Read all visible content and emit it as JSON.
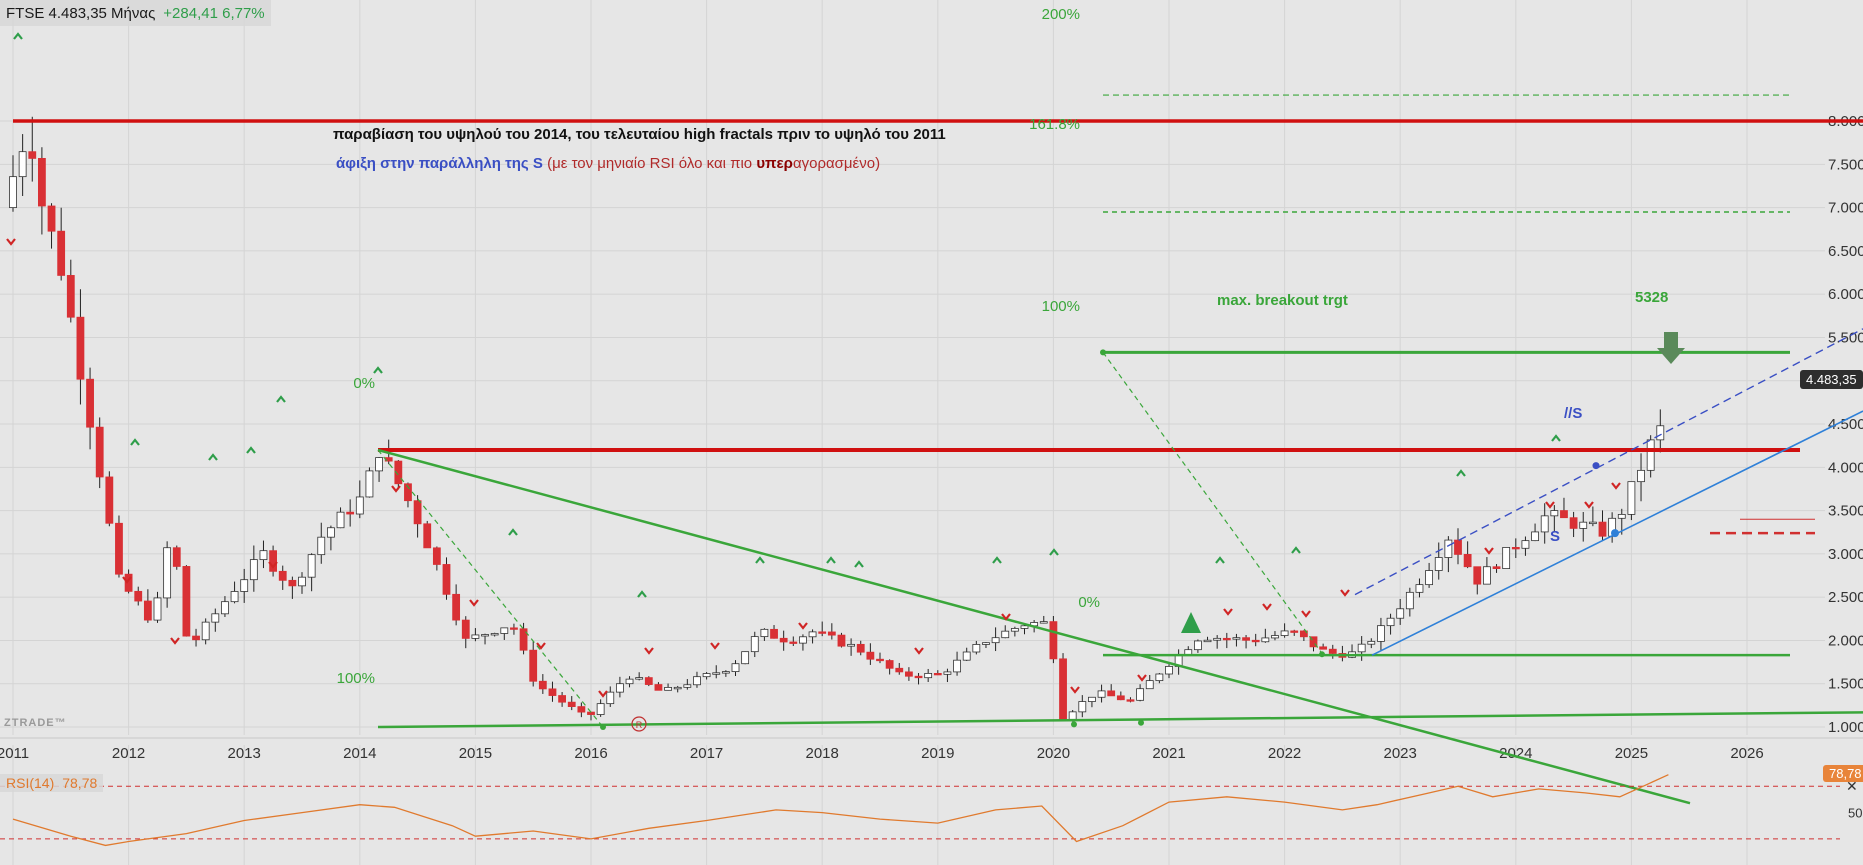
{
  "header": {
    "symbol_price": "FTSE 4.483,35 Μήνας",
    "change": "+284,41 6,77%"
  },
  "annotations": {
    "line1": "παραβίαση του υψηλού του 2014, του τελευταίου high fractals πριν το υψηλό του 2011",
    "line2_a": "άφιξη στην παράλληλη της S",
    "line2_b": " (με τον μηνιαίο RSI όλο και πιο ",
    "line2_c": "υπερ",
    "line2_d": "αγορασμένο)",
    "max_breakout": "max. breakout trgt",
    "target_value": "5328",
    "s_label": "S",
    "parallel_label": "//S"
  },
  "watermark": "ZTRADE™",
  "current_price_label": "4.483,35",
  "rsi": {
    "label": "RSI(14)",
    "value": "78,78",
    "box": "78,78",
    "mid_tick": "50"
  },
  "close_icon": "close-icon",
  "colors": {
    "bull": "#ffffff",
    "bear": "#d93035",
    "resistance": "#d01010",
    "green": "#3aa63a",
    "blue": "#2f80d8",
    "rsi": "#e07a2e"
  },
  "chart_data": {
    "type": "candlestick",
    "timeframe": "monthly",
    "x_ticks": [
      "2011",
      "2012",
      "2013",
      "2014",
      "2015",
      "2016",
      "2017",
      "2018",
      "2019",
      "2020",
      "2021",
      "2022",
      "2023",
      "2024",
      "2025",
      "2026"
    ],
    "y_ticks": [
      "1.000",
      "1.500",
      "2.000",
      "2.500",
      "3.000",
      "3.500",
      "4.000",
      "4.500",
      "5.000",
      "5.500",
      "6.000",
      "6.500",
      "7.000",
      "7.500",
      "8.000"
    ],
    "ylim": [
      500,
      8500
    ],
    "anchors": [
      {
        "t": 2011.0,
        "v": 7000
      },
      {
        "t": 2011.15,
        "v": 7650
      },
      {
        "t": 2011.22,
        "v": 8050
      },
      {
        "t": 2011.3,
        "v": 7200
      },
      {
        "t": 2011.5,
        "v": 6300
      },
      {
        "t": 2011.8,
        "v": 4200
      },
      {
        "t": 2012.0,
        "v": 2700
      },
      {
        "t": 2012.3,
        "v": 2200
      },
      {
        "t": 2012.45,
        "v": 3300
      },
      {
        "t": 2012.6,
        "v": 1900
      },
      {
        "t": 2013.0,
        "v": 2600
      },
      {
        "t": 2013.25,
        "v": 3000
      },
      {
        "t": 2013.5,
        "v": 2600
      },
      {
        "t": 2013.75,
        "v": 3200
      },
      {
        "t": 2014.1,
        "v": 3650
      },
      {
        "t": 2014.25,
        "v": 4200
      },
      {
        "t": 2014.55,
        "v": 3500
      },
      {
        "t": 2014.8,
        "v": 2700
      },
      {
        "t": 2015.0,
        "v": 2000
      },
      {
        "t": 2015.4,
        "v": 2200
      },
      {
        "t": 2015.6,
        "v": 1500
      },
      {
        "t": 2016.05,
        "v": 1100
      },
      {
        "t": 2016.4,
        "v": 1600
      },
      {
        "t": 2016.7,
        "v": 1400
      },
      {
        "t": 2017.3,
        "v": 1700
      },
      {
        "t": 2017.55,
        "v": 2100
      },
      {
        "t": 2017.8,
        "v": 2000
      },
      {
        "t": 2018.0,
        "v": 2100
      },
      {
        "t": 2018.4,
        "v": 1900
      },
      {
        "t": 2018.75,
        "v": 1600
      },
      {
        "t": 2019.1,
        "v": 1600
      },
      {
        "t": 2019.5,
        "v": 2000
      },
      {
        "t": 2019.85,
        "v": 2200
      },
      {
        "t": 2020.05,
        "v": 2200
      },
      {
        "t": 2020.15,
        "v": 1100
      },
      {
        "t": 2020.45,
        "v": 1400
      },
      {
        "t": 2020.75,
        "v": 1300
      },
      {
        "t": 2021.05,
        "v": 1700
      },
      {
        "t": 2021.35,
        "v": 2050
      },
      {
        "t": 2021.8,
        "v": 2000
      },
      {
        "t": 2022.15,
        "v": 2100
      },
      {
        "t": 2022.45,
        "v": 1850
      },
      {
        "t": 2022.7,
        "v": 1850
      },
      {
        "t": 2022.9,
        "v": 2100
      },
      {
        "t": 2023.2,
        "v": 2600
      },
      {
        "t": 2023.5,
        "v": 3200
      },
      {
        "t": 2023.75,
        "v": 2700
      },
      {
        "t": 2024.0,
        "v": 3000
      },
      {
        "t": 2024.35,
        "v": 3450
      },
      {
        "t": 2024.6,
        "v": 3350
      },
      {
        "t": 2024.85,
        "v": 3250
      },
      {
        "t": 2025.0,
        "v": 3500
      },
      {
        "t": 2025.15,
        "v": 3950
      },
      {
        "t": 2025.32,
        "v": 4480
      }
    ],
    "horizontal_levels": [
      {
        "label": "resistance 2011 high",
        "y": 8000,
        "color": "red"
      },
      {
        "label": "2014 high",
        "y": 4200,
        "color": "red"
      },
      {
        "label": "max. breakout trgt",
        "y": 5328,
        "color": "green"
      },
      {
        "label": "200%",
        "y": 8300,
        "color": "green",
        "dashed": true
      },
      {
        "label": "161.8%",
        "y": 6950,
        "color": "green",
        "dashed": true
      }
    ],
    "fib_labels": [
      "200%",
      "161.8%",
      "100%",
      "0%",
      "0%",
      "100%"
    ],
    "rsi_series": {
      "name": "RSI(14)",
      "ylim": [
        20,
        90
      ],
      "levels": [
        70,
        30
      ],
      "points": [
        {
          "t": 2011.0,
          "v": 45
        },
        {
          "t": 2011.5,
          "v": 32
        },
        {
          "t": 2011.8,
          "v": 25
        },
        {
          "t": 2012.0,
          "v": 28
        },
        {
          "t": 2012.5,
          "v": 34
        },
        {
          "t": 2013.0,
          "v": 44
        },
        {
          "t": 2013.5,
          "v": 50
        },
        {
          "t": 2014.0,
          "v": 56
        },
        {
          "t": 2014.3,
          "v": 54
        },
        {
          "t": 2014.8,
          "v": 40
        },
        {
          "t": 2015.0,
          "v": 32
        },
        {
          "t": 2015.5,
          "v": 36
        },
        {
          "t": 2016.0,
          "v": 30
        },
        {
          "t": 2016.5,
          "v": 38
        },
        {
          "t": 2017.0,
          "v": 44
        },
        {
          "t": 2017.6,
          "v": 52
        },
        {
          "t": 2018.0,
          "v": 50
        },
        {
          "t": 2018.5,
          "v": 45
        },
        {
          "t": 2019.0,
          "v": 42
        },
        {
          "t": 2019.5,
          "v": 52
        },
        {
          "t": 2019.9,
          "v": 55
        },
        {
          "t": 2020.2,
          "v": 28
        },
        {
          "t": 2020.6,
          "v": 40
        },
        {
          "t": 2021.0,
          "v": 58
        },
        {
          "t": 2021.5,
          "v": 62
        },
        {
          "t": 2022.0,
          "v": 58
        },
        {
          "t": 2022.5,
          "v": 52
        },
        {
          "t": 2022.8,
          "v": 56
        },
        {
          "t": 2023.2,
          "v": 64
        },
        {
          "t": 2023.5,
          "v": 70
        },
        {
          "t": 2023.8,
          "v": 62
        },
        {
          "t": 2024.2,
          "v": 68
        },
        {
          "t": 2024.6,
          "v": 65
        },
        {
          "t": 2024.9,
          "v": 62
        },
        {
          "t": 2025.1,
          "v": 70
        },
        {
          "t": 2025.32,
          "v": 78.78
        }
      ]
    }
  }
}
